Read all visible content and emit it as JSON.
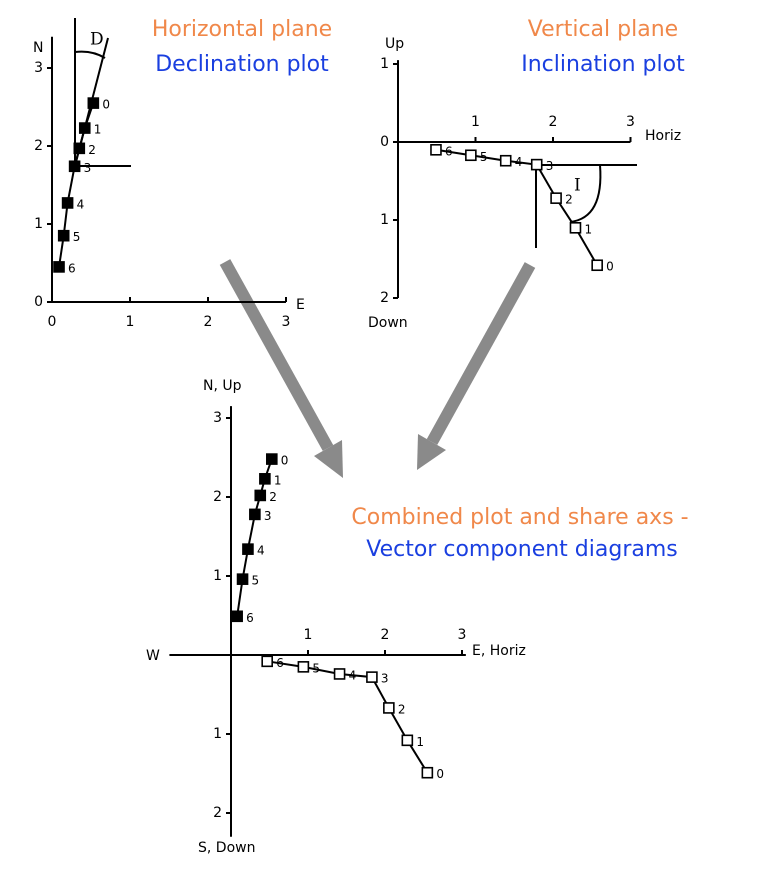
{
  "chart_data": [
    {
      "type": "line",
      "title": "Horizontal plane",
      "subtitle": "Declination plot",
      "title_color": "#f0884a",
      "subtitle_color": "#1a3fe0",
      "x_label": "E",
      "y_label": "N",
      "annotation": "D",
      "xlim": [
        0,
        3
      ],
      "ylim": [
        0,
        3.4
      ],
      "xticks": [
        0,
        1,
        2,
        3
      ],
      "yticks": [
        0,
        1,
        2,
        3
      ],
      "series": [
        {
          "marker": "filled",
          "color": "#000000",
          "x": [
            0.53,
            0.42,
            0.35,
            0.29,
            0.2,
            0.15,
            0.09
          ],
          "values": [
            2.55,
            2.23,
            1.97,
            1.74,
            1.27,
            0.85,
            0.45
          ],
          "point_labels": [
            "0",
            "1",
            "2",
            "3",
            "4",
            "5",
            "6"
          ]
        }
      ]
    },
    {
      "type": "line",
      "title": "Vertical plane",
      "subtitle": "Inclination plot",
      "title_color": "#f0884a",
      "subtitle_color": "#1a3fe0",
      "x_label": "Horiz",
      "y_label": "Up",
      "y_label_neg": "Down",
      "annotation": "I",
      "xlim": [
        0,
        3
      ],
      "ylim": [
        -2,
        1.05
      ],
      "xticks": [
        1,
        2,
        3
      ],
      "yticks": [
        {
          "value": -2,
          "label": "2"
        },
        {
          "value": -1,
          "label": "1"
        },
        0,
        1
      ],
      "series": [
        {
          "marker": "open",
          "color": "#000000",
          "x": [
            2.57,
            2.29,
            2.04,
            1.79,
            1.39,
            0.94,
            0.49
          ],
          "values": [
            -1.58,
            -1.1,
            -0.72,
            -0.29,
            -0.24,
            -0.17,
            -0.1
          ],
          "point_labels": [
            "0",
            "1",
            "2",
            "3",
            "4",
            "5",
            "6"
          ]
        }
      ]
    },
    {
      "type": "line",
      "title": "Combined plot and share axs -",
      "subtitle": "Vector component diagrams",
      "title_color": "#f0884a",
      "subtitle_color": "#1a3fe0",
      "x_label": "E, Horiz",
      "x_label_neg": "W",
      "y_label": "N, Up",
      "y_label_neg": "S, Down",
      "xlim": [
        -0.8,
        3.05
      ],
      "ylim": [
        -2.3,
        3.15
      ],
      "xticks": [
        1,
        2,
        3
      ],
      "yticks": [
        {
          "value": -2,
          "label": "2"
        },
        {
          "value": -1,
          "label": "1"
        },
        1,
        2,
        3
      ],
      "series": [
        {
          "marker": "filled",
          "color": "#000000",
          "x": [
            0.53,
            0.44,
            0.38,
            0.31,
            0.22,
            0.15,
            0.08
          ],
          "values": [
            2.48,
            2.23,
            2.02,
            1.78,
            1.34,
            0.96,
            0.49
          ],
          "point_labels": [
            "0",
            "1",
            "2",
            "3",
            "4",
            "5",
            "6"
          ]
        },
        {
          "marker": "open",
          "color": "#000000",
          "x": [
            2.55,
            2.29,
            2.05,
            1.83,
            1.41,
            0.94,
            0.47
          ],
          "values": [
            -1.49,
            -1.08,
            -0.67,
            -0.28,
            -0.24,
            -0.15,
            -0.08
          ],
          "point_labels": [
            "0",
            "1",
            "2",
            "3",
            "4",
            "5",
            "6"
          ]
        }
      ]
    }
  ]
}
